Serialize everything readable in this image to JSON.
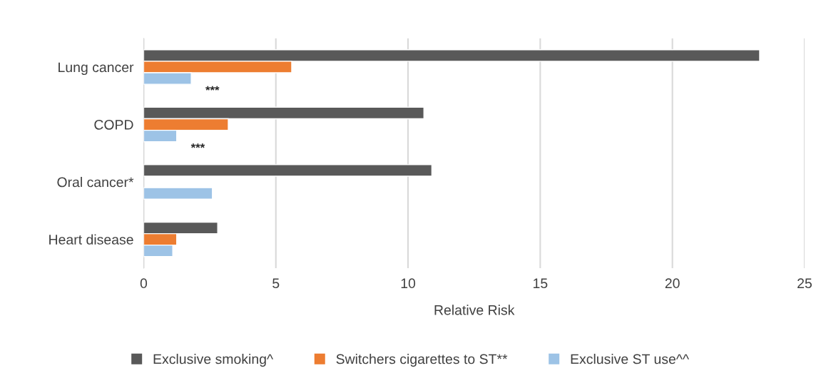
{
  "chart_data": {
    "type": "bar",
    "orientation": "horizontal",
    "xlabel": "Relative Risk",
    "categories": [
      "Lung cancer",
      "COPD",
      "Oral cancer*",
      "Heart disease"
    ],
    "series": [
      {
        "name": "Exclusive smoking^",
        "color": "#595959",
        "values": [
          23.3,
          10.6,
          10.9,
          2.8
        ]
      },
      {
        "name": "Switchers cigarettes to ST**",
        "color": "#ed7d31",
        "values": [
          5.6,
          3.2,
          null,
          1.25
        ]
      },
      {
        "name": "Exclusive ST use^^",
        "color": "#9dc3e6",
        "values": [
          1.8,
          1.25,
          2.6,
          1.1
        ]
      }
    ],
    "xlim": [
      0,
      25
    ],
    "xticks": [
      0,
      5,
      10,
      15,
      20,
      25
    ],
    "grid": "x",
    "legend": "bottom",
    "annotations": [
      "***",
      "***"
    ]
  }
}
